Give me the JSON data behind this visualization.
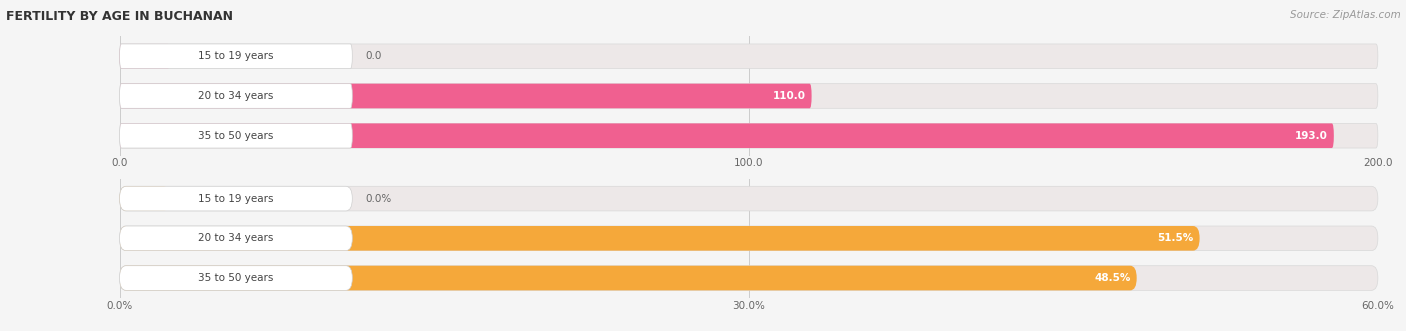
{
  "title": "FERTILITY BY AGE IN BUCHANAN",
  "source": "Source: ZipAtlas.com",
  "top_chart": {
    "categories": [
      "15 to 19 years",
      "20 to 34 years",
      "35 to 50 years"
    ],
    "values": [
      0.0,
      110.0,
      193.0
    ],
    "xlim": [
      0,
      200
    ],
    "xticks": [
      0.0,
      100.0,
      200.0
    ],
    "xtick_labels": [
      "0.0",
      "100.0",
      "200.0"
    ],
    "bar_color": "#f06090",
    "bg_bar_color": "#ede8e8",
    "label_color_inside": "#ffffff",
    "label_color_outside": "#666666"
  },
  "bottom_chart": {
    "categories": [
      "15 to 19 years",
      "20 to 34 years",
      "35 to 50 years"
    ],
    "values": [
      0.0,
      51.5,
      48.5
    ],
    "xlim": [
      0,
      60
    ],
    "xticks": [
      0.0,
      30.0,
      60.0
    ],
    "xtick_labels": [
      "0.0%",
      "30.0%",
      "60.0%"
    ],
    "bar_color": "#f5a83a",
    "bg_bar_color": "#ede8e8",
    "label_color_inside": "#ffffff",
    "label_color_outside": "#666666"
  },
  "bar_height": 0.62,
  "label_fontsize": 7.5,
  "tick_fontsize": 7.5,
  "cat_fontsize": 7.5,
  "title_fontsize": 9,
  "source_fontsize": 7.5,
  "fig_bg_color": "#f5f5f5",
  "ax_bg_color": "#f5f5f5",
  "grid_color": "#cccccc"
}
